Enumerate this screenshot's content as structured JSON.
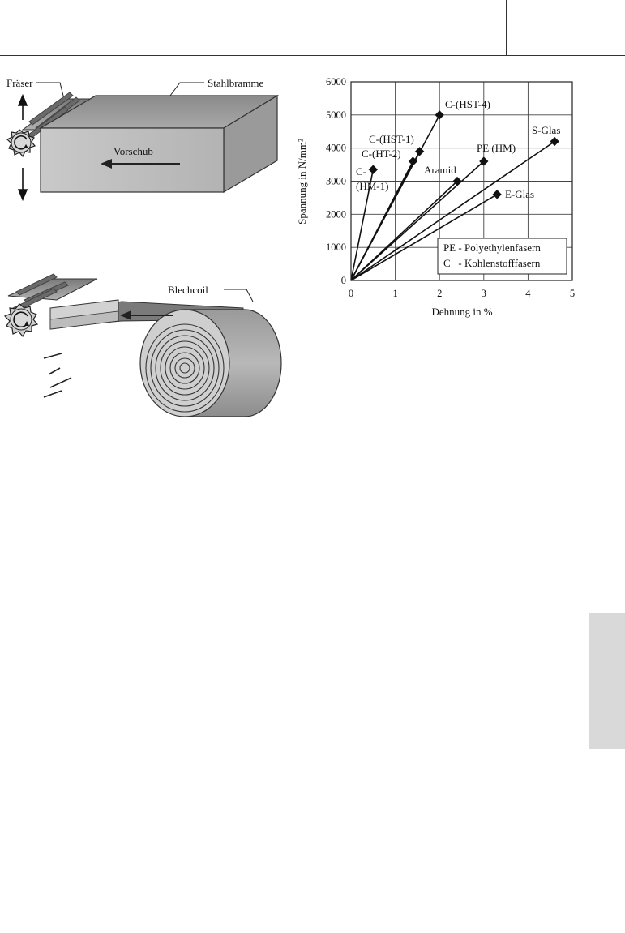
{
  "illustration_top": {
    "label_cutter": "Fräser",
    "label_slab": "Stahlbramme",
    "label_feed": "Vorschub"
  },
  "illustration_bottom": {
    "label_coil": "Blechcoil"
  },
  "chart_data": {
    "type": "line",
    "xlabel": "Dehnung in %",
    "ylabel": "Spannung in N/mm²",
    "xlim": [
      0,
      5
    ],
    "ylim": [
      0,
      6000
    ],
    "xticks": [
      0,
      1,
      2,
      3,
      4,
      5
    ],
    "yticks": [
      0,
      1000,
      2000,
      3000,
      4000,
      5000,
      6000
    ],
    "grid": true,
    "series": [
      {
        "name": "C-(HST-4)",
        "x": [
          0,
          2.0
        ],
        "y": [
          0,
          5000
        ]
      },
      {
        "name": "C-(HST-1)",
        "x": [
          0,
          1.55
        ],
        "y": [
          0,
          3900
        ]
      },
      {
        "name": "C-(HT-2)",
        "x": [
          0,
          1.4
        ],
        "y": [
          0,
          3600
        ]
      },
      {
        "name": "C-(HM-1)",
        "x": [
          0,
          0.5
        ],
        "y": [
          0,
          3350
        ]
      },
      {
        "name": "Aramid",
        "x": [
          0,
          2.4
        ],
        "y": [
          0,
          3000
        ]
      },
      {
        "name": "PE (HM)",
        "x": [
          0,
          3.0
        ],
        "y": [
          0,
          3600
        ]
      },
      {
        "name": "S-Glas",
        "x": [
          0,
          4.6
        ],
        "y": [
          0,
          4200
        ]
      },
      {
        "name": "E-Glas",
        "x": [
          0,
          3.3
        ],
        "y": [
          0,
          2600
        ]
      }
    ],
    "series_labels": {
      "hst4": "C-(HST-4)",
      "hst1": "C-(HST-1)",
      "ht2": "C-(HT-2)",
      "hm1_a": "C-",
      "hm1_b": "(HM-1)",
      "aramid": "Aramid",
      "pe": "PE (HM)",
      "sglas": "S-Glas",
      "eglas": "E-Glas"
    },
    "legend": {
      "placement": "bottom-right",
      "line1": "PE - Polyethylenfasern",
      "line2": "C   - Kohlenstofffasern"
    }
  }
}
